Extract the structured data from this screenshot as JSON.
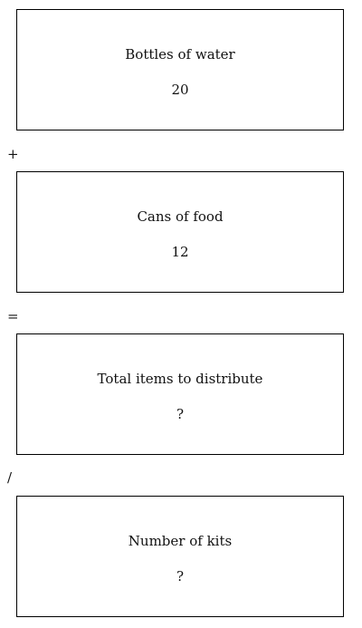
{
  "boxes": [
    {
      "label": "Bottles of water",
      "value": "20"
    },
    {
      "label": "Cans of food",
      "value": "12"
    },
    {
      "label": "Total items to distribute",
      "value": "?"
    },
    {
      "label": "Number of kits",
      "value": "?"
    }
  ],
  "operators": [
    "+",
    "=",
    "/"
  ]
}
